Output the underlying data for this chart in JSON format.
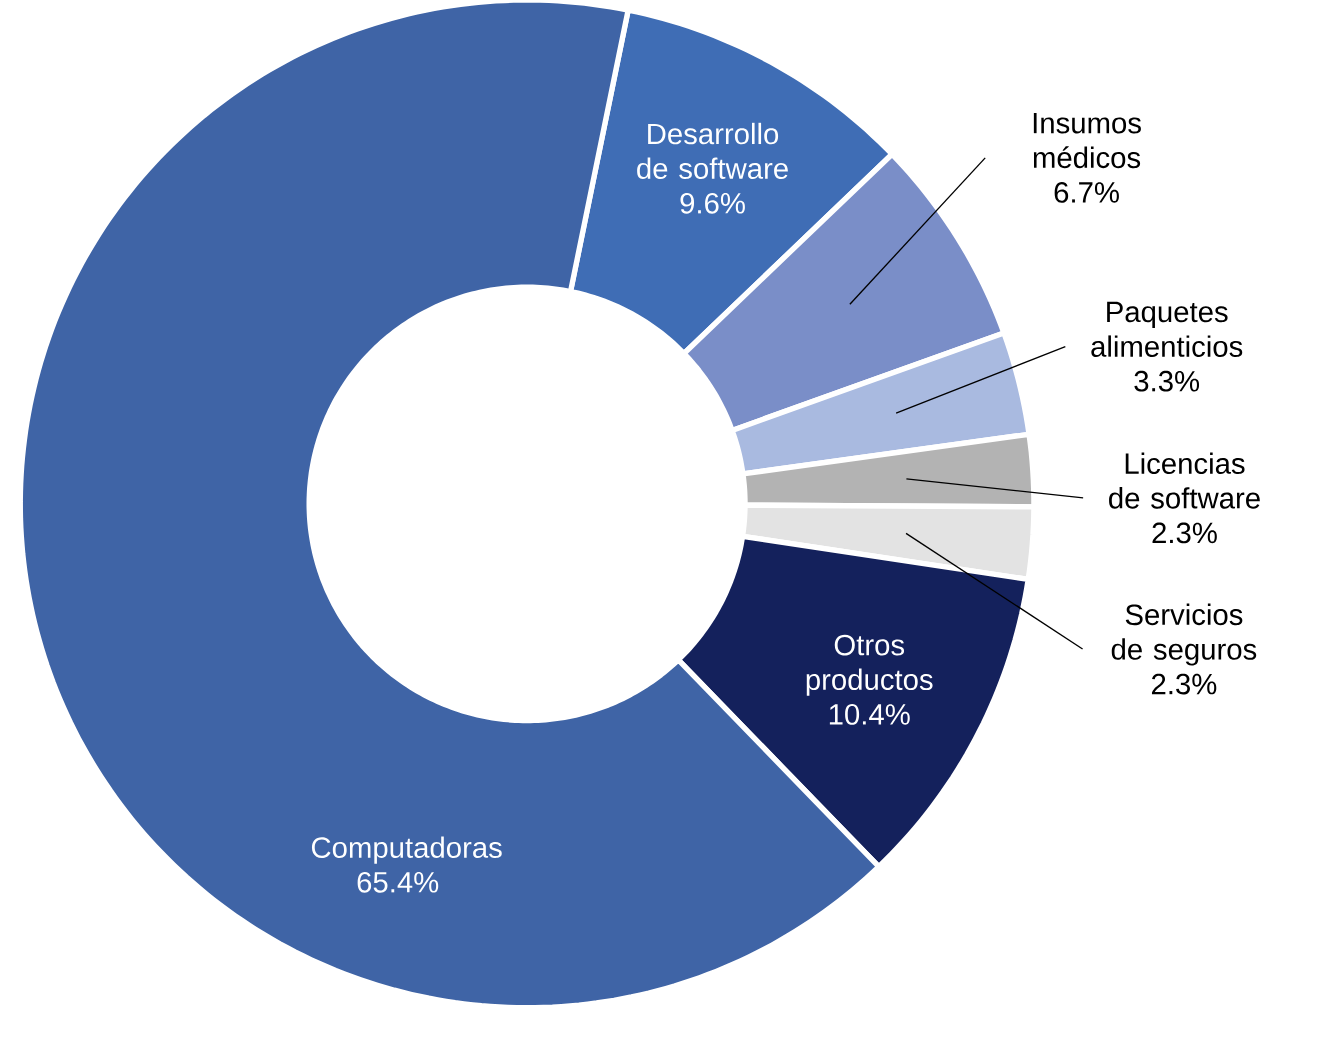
{
  "chart_data": {
    "type": "donut",
    "categories": [
      "Desarrollo de software",
      "Insumos médicos",
      "Paquetes alimenticios",
      "Licencias de software",
      "Servicios de seguros",
      "Otros productos",
      "Computadoras"
    ],
    "values": [
      9.6,
      6.7,
      3.3,
      2.3,
      2.3,
      10.4,
      65.4
    ],
    "colors": [
      "#3f6db5",
      "#7a8ec8",
      "#a9bae0",
      "#b3b3b3",
      "#e3e3e3",
      "#14215c",
      "#3f64a6"
    ],
    "value_labels": [
      "9.6%",
      "6.7%",
      "3.3%",
      "2.3%",
      "2.3%",
      "10.4%",
      "65.4%"
    ]
  }
}
